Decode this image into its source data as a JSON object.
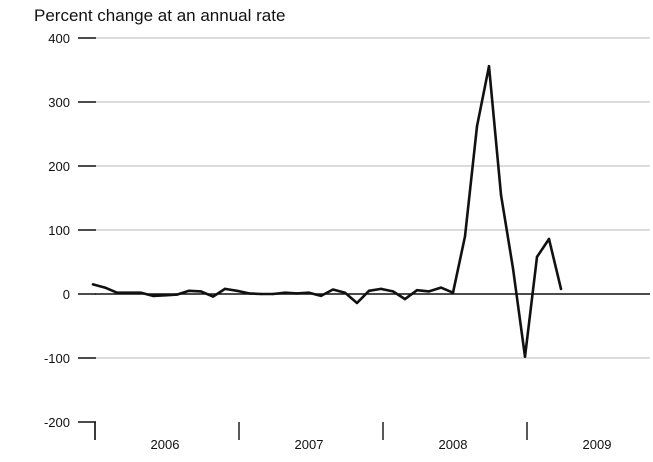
{
  "chart_data": {
    "type": "line",
    "title": "",
    "ylabel": "Percent change at an annual rate",
    "xlabel": "",
    "ylim": [
      -200,
      400
    ],
    "yticks": [
      400,
      300,
      200,
      100,
      0,
      -100,
      -200
    ],
    "year_labels": [
      "2006",
      "2007",
      "2008",
      "2009"
    ],
    "x_range_months": [
      "2006-01",
      "2009-12"
    ],
    "grid": true,
    "legend": "none",
    "series": [
      {
        "points": [
          {
            "x": "2006-01",
            "y": 15
          },
          {
            "x": "2006-02",
            "y": 10
          },
          {
            "x": "2006-03",
            "y": 2
          },
          {
            "x": "2006-04",
            "y": 2
          },
          {
            "x": "2006-05",
            "y": 2
          },
          {
            "x": "2006-06",
            "y": -3
          },
          {
            "x": "2006-07",
            "y": -2
          },
          {
            "x": "2006-08",
            "y": -1
          },
          {
            "x": "2006-09",
            "y": 5
          },
          {
            "x": "2006-10",
            "y": 4
          },
          {
            "x": "2006-11",
            "y": -4
          },
          {
            "x": "2006-12",
            "y": 8
          },
          {
            "x": "2007-01",
            "y": 5
          },
          {
            "x": "2007-02",
            "y": 1
          },
          {
            "x": "2007-03",
            "y": 0
          },
          {
            "x": "2007-04",
            "y": 0
          },
          {
            "x": "2007-05",
            "y": 2
          },
          {
            "x": "2007-06",
            "y": 1
          },
          {
            "x": "2007-07",
            "y": 2
          },
          {
            "x": "2007-08",
            "y": -3
          },
          {
            "x": "2007-09",
            "y": 7
          },
          {
            "x": "2007-10",
            "y": 2
          },
          {
            "x": "2007-11",
            "y": -14
          },
          {
            "x": "2007-12",
            "y": 5
          },
          {
            "x": "2008-01",
            "y": 8
          },
          {
            "x": "2008-02",
            "y": 4
          },
          {
            "x": "2008-03",
            "y": -8
          },
          {
            "x": "2008-04",
            "y": 6
          },
          {
            "x": "2008-05",
            "y": 4
          },
          {
            "x": "2008-06",
            "y": 10
          },
          {
            "x": "2008-07",
            "y": 2
          },
          {
            "x": "2008-08",
            "y": 90
          },
          {
            "x": "2008-09",
            "y": 262
          },
          {
            "x": "2008-10",
            "y": 356
          },
          {
            "x": "2008-11",
            "y": 155
          },
          {
            "x": "2008-12",
            "y": 40
          },
          {
            "x": "2009-01",
            "y": -98
          },
          {
            "x": "2009-02",
            "y": 58
          },
          {
            "x": "2009-03",
            "y": 86
          },
          {
            "x": "2009-04",
            "y": 8
          }
        ],
        "color": "#111111"
      }
    ]
  }
}
